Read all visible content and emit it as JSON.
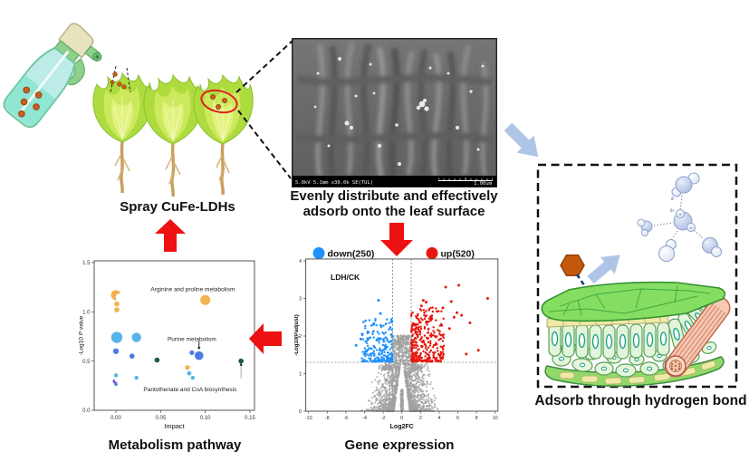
{
  "labels": {
    "spray_caption": "Spray CuFe-LDHs",
    "sem_caption_line1": "Evenly distribute and effectively",
    "sem_caption_line2": "adsorb onto the leaf surface",
    "sem_info": "5.0kV 5.1mm x30.0k SE(TUL)",
    "sem_scale": "1.00um",
    "hydrogen_caption": "Adsorb through hydrogen bond",
    "metabolism_caption": "Metabolism pathway",
    "gene_caption": "Gene expression",
    "molecule_labels": {
      "delta_minus": "δ-",
      "delta_plus": "δ+",
      "h1": "H",
      "h2": "H"
    }
  },
  "colors": {
    "red_arrow": "#EE1111",
    "blue_arrow": "#AFC5E8",
    "up_red": "#E8160C",
    "down_blue": "#1E90FF",
    "gray_point": "#A0A0A0",
    "bubble": {
      "orange": "#F2B24E",
      "lightblue": "#56B4E9",
      "blue": "#4E79E6",
      "darkgreen": "#17594A",
      "purple": "#7C4FD9"
    }
  },
  "chart_data": [
    {
      "type": "scatter",
      "name": "volcano",
      "title": "Gene expression",
      "condition_label": "LDH/CK",
      "xlabel": "Log2FC",
      "ylabel": "-Log10(Padjust)",
      "xlim": [
        -10,
        10
      ],
      "ylim": [
        0,
        4
      ],
      "xticks": [
        {
          "v": -10,
          "l": "-10"
        },
        {
          "v": -8,
          "l": "-8"
        },
        {
          "v": -6,
          "l": "-6"
        },
        {
          "v": -4,
          "l": "-4"
        },
        {
          "v": -2,
          "l": "-2"
        },
        {
          "v": 0,
          "l": "0"
        },
        {
          "v": 2,
          "l": "2"
        },
        {
          "v": 4,
          "l": "4"
        },
        {
          "v": 6,
          "l": "6"
        },
        {
          "v": 8,
          "l": "8"
        },
        {
          "v": 10,
          "l": "10"
        }
      ],
      "yticks": [
        {
          "v": 0,
          "l": "0"
        },
        {
          "v": 1,
          "l": "1"
        },
        {
          "v": 2,
          "l": "2"
        },
        {
          "v": 3,
          "l": "3"
        },
        {
          "v": 4,
          "l": "4"
        }
      ],
      "legend": [
        {
          "label": "down(250)",
          "color": "#1E90FF"
        },
        {
          "label": "up(520)",
          "color": "#E8160C"
        }
      ],
      "counts": {
        "down": 250,
        "up": 520
      },
      "threshold_y": 1.3,
      "threshold_x": [
        -1,
        1
      ],
      "generation": {
        "seed": 987654321,
        "n_gray": 2400,
        "n_spike": 160,
        "n_down": 230,
        "n_up": 330
      },
      "outliers_up": [
        [
          9.2,
          3.0
        ],
        [
          6.1,
          3.35
        ],
        [
          4.7,
          3.3
        ],
        [
          5.3,
          2.92
        ],
        [
          5.9,
          2.62
        ],
        [
          6.4,
          2.55
        ],
        [
          7.3,
          2.35
        ],
        [
          5.6,
          2.5
        ],
        [
          8.2,
          1.62
        ],
        [
          6.9,
          1.52
        ],
        [
          5.1,
          2.2
        ],
        [
          4.4,
          2.75
        ],
        [
          2.3,
          2.95
        ],
        [
          2.6,
          2.9
        ],
        [
          2.1,
          2.8
        ]
      ],
      "outliers_down": [
        [
          -2.5,
          2.95
        ],
        [
          -2.3,
          2.6
        ],
        [
          -3.0,
          2.33
        ],
        [
          -4.9,
          1.75
        ],
        [
          -4.4,
          1.92
        ],
        [
          -3.6,
          2.1
        ]
      ]
    },
    {
      "type": "bubble",
      "name": "metabolism",
      "title": "Metabolism pathway",
      "xlabel": "Impact",
      "ylabel_parts": [
        "-Log10 ",
        "P",
        " value"
      ],
      "xlim": [
        -0.024,
        0.157
      ],
      "ylim": [
        0,
        1.51
      ],
      "xticks": [
        {
          "v": 0,
          "l": "0.00"
        },
        {
          "v": 0.05,
          "l": "0.05"
        },
        {
          "v": 0.1,
          "l": "0.10"
        },
        {
          "v": 0.15,
          "l": "0.15"
        }
      ],
      "yticks": [
        {
          "v": 0,
          "l": "0.0"
        },
        {
          "v": 0.5,
          "l": "0.5"
        },
        {
          "v": 1,
          "l": "1.0"
        },
        {
          "v": 1.5,
          "l": "1.5"
        }
      ],
      "points": [
        {
          "x": 0.0,
          "y": 1.17,
          "r": 5.5,
          "c": "orange",
          "cut": [
            0.75,
            0.45
          ]
        },
        {
          "x": 0.001,
          "y": 1.08,
          "r": 2.8,
          "c": "orange"
        },
        {
          "x": 0.001,
          "y": 1.02,
          "r": 2.8,
          "c": "orange"
        },
        {
          "x": 0.1,
          "y": 1.12,
          "r": 5.5,
          "c": "orange",
          "label": "Arginine and proline metabolism"
        },
        {
          "x": 0.001,
          "y": 0.74,
          "r": 6.2,
          "c": "lightblue"
        },
        {
          "x": 0.023,
          "y": 0.74,
          "r": 5.2,
          "c": "lightblue"
        },
        {
          "x": 0.0,
          "y": 0.6,
          "r": 3.2,
          "c": "blue"
        },
        {
          "x": 0.018,
          "y": 0.55,
          "r": 2.8,
          "c": "blue"
        },
        {
          "x": 0.046,
          "y": 0.51,
          "r": 2.8,
          "c": "darkgreen"
        },
        {
          "x": 0.085,
          "y": 0.585,
          "r": 2.6,
          "c": "blue"
        },
        {
          "x": 0.093,
          "y": 0.555,
          "r": 4.8,
          "c": "blue",
          "label": "Purine metabolism"
        },
        {
          "x": 0.08,
          "y": 0.435,
          "r": 2.6,
          "c": "orange"
        },
        {
          "x": 0.082,
          "y": 0.375,
          "r": 2.4,
          "c": "lightblue"
        },
        {
          "x": 0.086,
          "y": 0.33,
          "r": 2.2,
          "c": "lightblue"
        },
        {
          "x": 0.14,
          "y": 0.5,
          "r": 2.8,
          "c": "darkgreen",
          "stem": true,
          "label": "Pantothenate and CoA biosynthesis"
        },
        {
          "x": 0.0,
          "y": 0.355,
          "r": 2.2,
          "c": "lightblue"
        },
        {
          "x": 0.023,
          "y": 0.33,
          "r": 2.2,
          "c": "lightblue"
        },
        {
          "x": -0.001,
          "y": 0.295,
          "r": 2.6,
          "c": "purple",
          "cut": [
            0.6,
            -0.55
          ]
        },
        {
          "x": 0.0,
          "y": 0.265,
          "r": 1.8,
          "c": "blue"
        }
      ],
      "annotations": [
        {
          "text": "Arginine and proline metabolism",
          "x": 0.086,
          "y": 1.23
        },
        {
          "text": "Purine metabolism",
          "x": 0.085,
          "y": 0.72,
          "arrow_x": 0.093,
          "arrow_y1": 0.7,
          "arrow_y2": 0.615
        },
        {
          "text": "Pantothenate and CoA biosynthesis",
          "x": 0.083,
          "y": 0.21
        }
      ]
    }
  ]
}
